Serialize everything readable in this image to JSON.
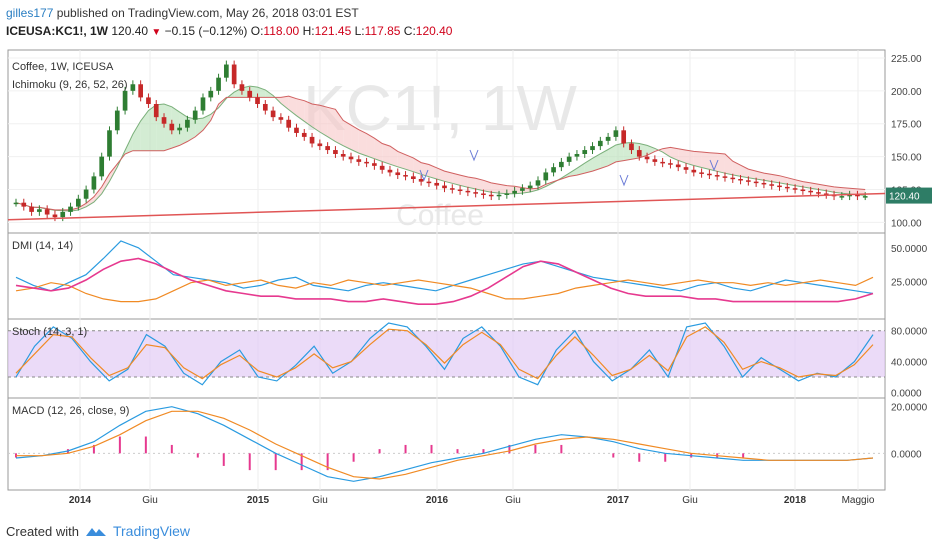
{
  "header": {
    "user": "gilles177",
    "published": " published on TradingView.com, May 26, 2018 03:01 EST",
    "symbol": "ICEUSA:KC1!, 1W",
    "last": "120.40",
    "change": "−0.15 (−0.12%)",
    "o_label": "O:",
    "o_value": "118.00",
    "h_label": "H:",
    "h_value": "121.45",
    "l_label": "L:",
    "l_value": "117.85",
    "c_label": "C:",
    "c_value": "120.40"
  },
  "watermark": {
    "symbol": "KC1!, 1W",
    "name": "Coffee"
  },
  "footer": {
    "created": "Created with",
    "brand": "TradingView"
  },
  "colors": {
    "up": "#2e7d32",
    "down": "#c62828",
    "kumo_bull": "#b5e0b5",
    "kumo_bear": "#f7c6c6",
    "dmi_plus": "#2a9be0",
    "dmi_minus": "#f08a24",
    "adx": "#e6398f",
    "stoch_k": "#2a9be0",
    "stoch_d": "#f08a24",
    "stoch_band": "#e2ccf5",
    "macd": "#2a9be0",
    "signal": "#f08a24",
    "hist": "#e6398f",
    "trendline": "#e05555"
  },
  "chart_data": [
    {
      "type": "candlestick",
      "title": "Coffee, 1W, ICEUSA",
      "indicator": "Ichimoku (9, 26, 52, 26)",
      "x_ticks": [
        "2014",
        "Giu",
        "2015",
        "Giu",
        "2016",
        "Giu",
        "2017",
        "Giu",
        "2018",
        "Maggio"
      ],
      "y_ticks": [
        "225.00",
        "200.00",
        "175.00",
        "150.00",
        "125.00",
        "100.00"
      ],
      "ylim": [
        95,
        228
      ],
      "last_price_label": "120.40",
      "close_series": [
        115,
        112,
        108,
        110,
        106,
        104,
        108,
        112,
        118,
        125,
        135,
        150,
        170,
        185,
        200,
        205,
        195,
        190,
        180,
        175,
        170,
        172,
        178,
        185,
        195,
        200,
        210,
        220,
        205,
        200,
        195,
        190,
        185,
        180,
        178,
        172,
        168,
        165,
        160,
        158,
        155,
        152,
        150,
        148,
        146,
        145,
        143,
        140,
        138,
        136,
        135,
        133,
        131,
        130,
        128,
        126,
        125,
        124,
        123,
        122,
        121,
        120,
        121,
        122,
        124,
        126,
        128,
        132,
        138,
        142,
        146,
        150,
        152,
        155,
        158,
        162,
        165,
        170,
        160,
        155,
        150,
        148,
        146,
        145,
        144,
        142,
        140,
        138,
        137,
        136,
        135,
        134,
        133,
        132,
        131,
        130,
        129,
        128,
        127,
        126,
        125,
        124,
        123,
        122,
        121,
        120,
        120,
        121,
        120,
        120
      ],
      "trendline": [
        [
          0,
          102
        ],
        [
          1,
          122
        ]
      ]
    },
    {
      "type": "line",
      "title": "DMI (14, 14)",
      "y_ticks": [
        "50.0000",
        "25.0000"
      ],
      "ylim": [
        0,
        58
      ],
      "series": [
        {
          "name": "+DI",
          "values": [
            28,
            22,
            18,
            24,
            30,
            42,
            55,
            50,
            40,
            30,
            28,
            26,
            24,
            20,
            22,
            26,
            28,
            22,
            20,
            18,
            22,
            24,
            22,
            20,
            18,
            22,
            26,
            30,
            34,
            38,
            40,
            36,
            32,
            28,
            26,
            24,
            22,
            20,
            18,
            22,
            24,
            20,
            18,
            22,
            26,
            24,
            22,
            20,
            18,
            16
          ]
        },
        {
          "name": "-DI",
          "values": [
            18,
            20,
            24,
            22,
            16,
            12,
            10,
            10,
            12,
            18,
            24,
            26,
            22,
            24,
            26,
            22,
            20,
            24,
            22,
            26,
            24,
            22,
            24,
            26,
            24,
            22,
            20,
            16,
            12,
            12,
            14,
            16,
            20,
            22,
            24,
            26,
            24,
            22,
            24,
            26,
            24,
            24,
            22,
            24,
            22,
            24,
            26,
            24,
            22,
            28
          ]
        },
        {
          "name": "ADX",
          "values": [
            22,
            20,
            18,
            20,
            26,
            34,
            40,
            42,
            38,
            32,
            26,
            22,
            18,
            16,
            14,
            14,
            12,
            12,
            12,
            10,
            10,
            12,
            10,
            8,
            8,
            10,
            14,
            20,
            28,
            36,
            40,
            38,
            32,
            26,
            20,
            16,
            14,
            14,
            14,
            12,
            12,
            10,
            10,
            10,
            10,
            10,
            10,
            10,
            12,
            16
          ]
        }
      ]
    },
    {
      "type": "line",
      "title": "Stoch (14, 3, 1)",
      "y_ticks": [
        "80.0000",
        "40.0000",
        "0.0000"
      ],
      "ylim": [
        -2,
        90
      ],
      "band": [
        20,
        80
      ],
      "series": [
        {
          "name": "%K",
          "values": [
            20,
            60,
            85,
            70,
            40,
            15,
            30,
            75,
            60,
            25,
            10,
            40,
            55,
            20,
            15,
            35,
            60,
            25,
            40,
            70,
            90,
            85,
            60,
            30,
            70,
            85,
            60,
            20,
            10,
            55,
            80,
            40,
            15,
            30,
            55,
            20,
            85,
            90,
            60,
            20,
            45,
            30,
            15,
            25,
            20,
            40,
            75
          ]
        },
        {
          "name": "%D",
          "values": [
            25,
            50,
            75,
            72,
            45,
            22,
            32,
            62,
            58,
            32,
            18,
            36,
            48,
            28,
            20,
            32,
            50,
            32,
            40,
            62,
            82,
            80,
            62,
            38,
            62,
            78,
            62,
            30,
            18,
            48,
            72,
            48,
            22,
            30,
            48,
            28,
            72,
            85,
            65,
            30,
            40,
            32,
            20,
            24,
            22,
            36,
            62
          ]
        }
      ]
    },
    {
      "type": "line",
      "title": "MACD (12, 26, close, 9)",
      "y_ticks": [
        "20.0000",
        "0.0000"
      ],
      "ylim": [
        -14,
        22
      ],
      "series": [
        {
          "name": "MACD",
          "values": [
            -2,
            -1,
            1,
            5,
            12,
            18,
            20,
            17,
            12,
            6,
            0,
            -5,
            -10,
            -12,
            -10,
            -7,
            -4,
            -2,
            0,
            3,
            6,
            8,
            7,
            5,
            2,
            0,
            -1,
            -2,
            -3,
            -3,
            -3,
            -3,
            -3,
            -2
          ]
        },
        {
          "name": "Signal",
          "values": [
            -1,
            -1,
            0,
            3,
            8,
            14,
            18,
            18,
            15,
            10,
            4,
            -1,
            -6,
            -10,
            -11,
            -9,
            -6,
            -3,
            -1,
            1,
            4,
            6,
            7,
            6,
            4,
            2,
            0,
            -1,
            -2,
            -3,
            -3,
            -3,
            -3,
            -2
          ]
        }
      ]
    }
  ]
}
